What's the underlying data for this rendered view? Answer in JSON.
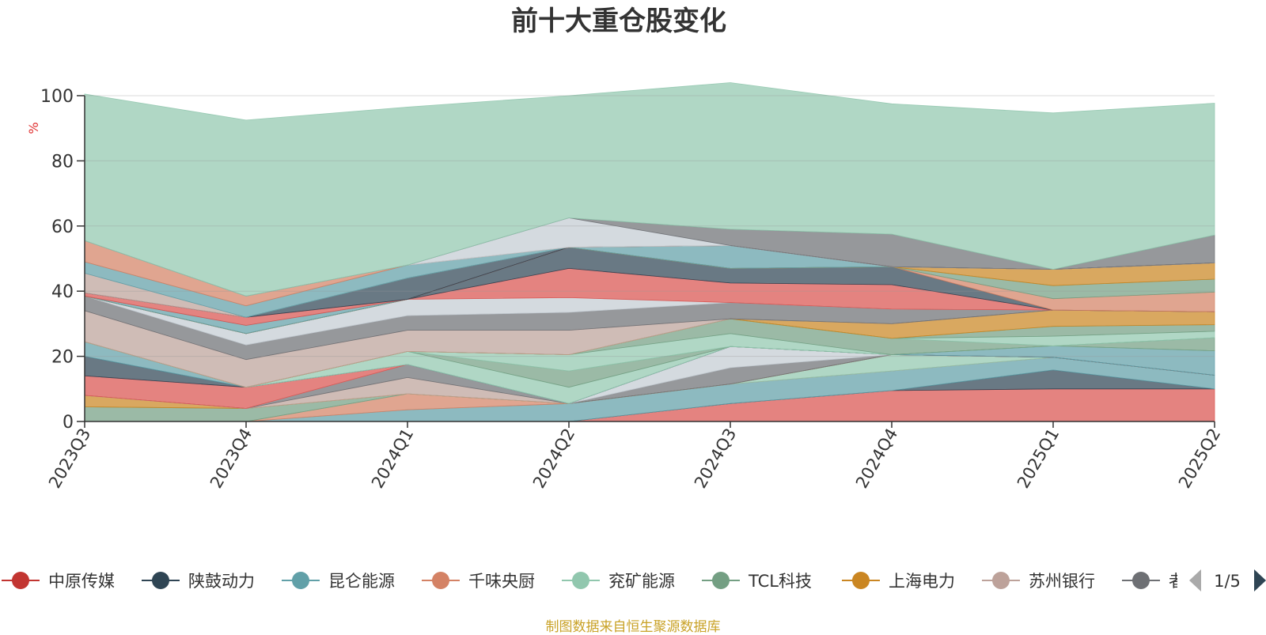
{
  "chart_data": {
    "type": "area",
    "stacked": true,
    "title": "前十大重仓股变化",
    "ylabel": "%",
    "ylim": [
      0,
      100
    ],
    "yticks": [
      0,
      20,
      40,
      60,
      80,
      100
    ],
    "grid": true,
    "legend_position": "bottom",
    "categories": [
      "2023Q3",
      "2023Q4",
      "2024Q1",
      "2024Q2",
      "2024Q3",
      "2024Q4",
      "2025Q1",
      "2025Q2"
    ],
    "series": [
      {
        "name": "中原传媒",
        "color": "#d9534f",
        "values": [
          0,
          0,
          0,
          0,
          5.5,
          9.5,
          10,
          10
        ]
      },
      {
        "name": "陕鼓动力",
        "color": "#2f4554",
        "values": [
          0,
          0,
          0,
          0,
          0,
          0,
          5.8,
          0
        ]
      },
      {
        "name": "昆仑能源",
        "color": "#61a0a8",
        "values": [
          0,
          0,
          3.6,
          5.5,
          6,
          6,
          3.9,
          4.2
        ]
      },
      {
        "name": "千味央厨",
        "color": "#d48265",
        "values": [
          0,
          0,
          4.9,
          0,
          0,
          0,
          0,
          0
        ]
      },
      {
        "name": "兖矿能源",
        "color": "#91c7ae",
        "values": [
          0,
          0,
          0,
          0,
          0,
          5,
          0,
          0
        ]
      },
      {
        "name": "TCL科技",
        "color": "#749f83",
        "values": [
          4.5,
          4,
          0,
          0,
          0,
          0,
          0,
          0
        ]
      },
      {
        "name": "上海电力",
        "color": "#ca8622",
        "values": [
          3.5,
          0,
          0,
          0,
          0,
          0,
          0,
          0
        ]
      }
    ],
    "other_layers": [
      {
        "color": "#bda29a",
        "values": [
          0,
          0,
          5,
          0,
          0,
          0,
          0,
          0
        ]
      },
      {
        "color": "#6e7074",
        "values": [
          0,
          0,
          4,
          0,
          5,
          0,
          0,
          0
        ]
      },
      {
        "color": "#c4ccd3",
        "values": [
          0,
          0,
          0,
          0,
          6.5,
          0,
          0,
          0
        ]
      },
      {
        "color": "#d9534f",
        "values": [
          6,
          6.5,
          0,
          0,
          0,
          0,
          0,
          0
        ]
      },
      {
        "color": "#2f4554",
        "values": [
          6,
          0,
          0,
          0,
          0,
          0,
          0,
          0
        ]
      },
      {
        "color": "#61a0a8",
        "values": [
          4.5,
          0,
          0,
          0,
          0,
          0,
          3.5,
          7.5
        ]
      },
      {
        "color": "#91c7ae",
        "values": [
          0,
          0,
          4,
          5,
          0,
          0,
          0,
          0
        ]
      },
      {
        "color": "#749f83",
        "values": [
          0,
          0,
          0,
          5,
          0,
          0,
          0,
          4
        ]
      },
      {
        "color": "#91c7ae",
        "values": [
          0,
          0,
          0,
          5,
          4,
          0,
          0,
          0
        ]
      },
      {
        "color": "#749f83",
        "values": [
          0,
          0,
          0,
          0,
          4.5,
          5,
          0,
          0
        ]
      },
      {
        "color": "#91c7ae",
        "values": [
          0,
          0,
          0,
          0,
          0,
          0,
          3,
          2
        ]
      },
      {
        "color": "#749f83",
        "values": [
          0,
          0,
          0,
          0,
          0,
          0,
          3,
          2
        ]
      },
      {
        "color": "#ca8622",
        "values": [
          0,
          0,
          0,
          0,
          0,
          4.5,
          5,
          4
        ]
      },
      {
        "color": "#bda29a",
        "values": [
          9.5,
          8.5,
          6.5,
          7.5,
          0,
          0,
          0,
          0
        ]
      },
      {
        "color": "#6e7074",
        "values": [
          4.5,
          4.5,
          4.5,
          5.5,
          5,
          4.5,
          0,
          0
        ]
      },
      {
        "color": "#c4ccd3",
        "values": [
          0,
          3.5,
          5,
          4.5,
          0,
          0,
          0,
          0
        ]
      },
      {
        "color": "#d9534f",
        "values": [
          0,
          0,
          0,
          9,
          6,
          7.5,
          0,
          0
        ]
      },
      {
        "color": "#2f4554",
        "values": [
          0,
          0,
          0,
          6.5,
          4.5,
          5.5,
          0,
          0
        ]
      },
      {
        "color": "#d48265",
        "values": [
          0,
          0,
          0,
          0,
          0,
          0,
          3.5,
          6
        ]
      },
      {
        "color": "#749f83",
        "values": [
          0,
          0,
          0,
          0,
          0,
          0,
          4,
          4
        ]
      },
      {
        "color": "#ca8622",
        "values": [
          0,
          0,
          0,
          0,
          0,
          0,
          5,
          5
        ]
      },
      {
        "color": "#61a0a8",
        "values": [
          0,
          2.5,
          0,
          0,
          7,
          0,
          0,
          0
        ]
      },
      {
        "color": "#d9534f",
        "values": [
          1,
          2.5,
          0,
          0,
          0,
          0,
          0,
          0
        ]
      },
      {
        "color": "#2f4554",
        "values": [
          0,
          0,
          6.5,
          0,
          0,
          0,
          0,
          0
        ]
      },
      {
        "color": "#bda29a",
        "values": [
          6,
          0,
          0,
          0,
          0,
          0,
          0,
          0
        ]
      },
      {
        "color": "#61a0a8",
        "values": [
          3.5,
          3.5,
          4,
          0,
          0,
          0,
          0,
          0
        ]
      },
      {
        "color": "#d48265",
        "values": [
          6.5,
          3,
          0,
          0,
          0,
          0,
          0,
          0
        ]
      },
      {
        "color": "#c4ccd3",
        "values": [
          0,
          0,
          0,
          9,
          0,
          0,
          0,
          0
        ]
      },
      {
        "color": "#6e7074",
        "values": [
          0,
          0,
          0,
          0,
          5,
          10,
          0,
          8.5
        ]
      },
      {
        "color": "#91c7ae",
        "values": [
          45,
          54,
          48.5,
          37.5,
          45,
          40,
          48,
          40.5
        ]
      }
    ],
    "visible_legend": [
      "中原传媒",
      "陕鼓动力",
      "昆仑能源",
      "千味央厨",
      "兖矿能源",
      "TCL科技",
      "上海电力",
      "苏州银行",
      "者"
    ],
    "legend_page": "1/5",
    "source": "制图数据来自恒生聚源数据库"
  }
}
